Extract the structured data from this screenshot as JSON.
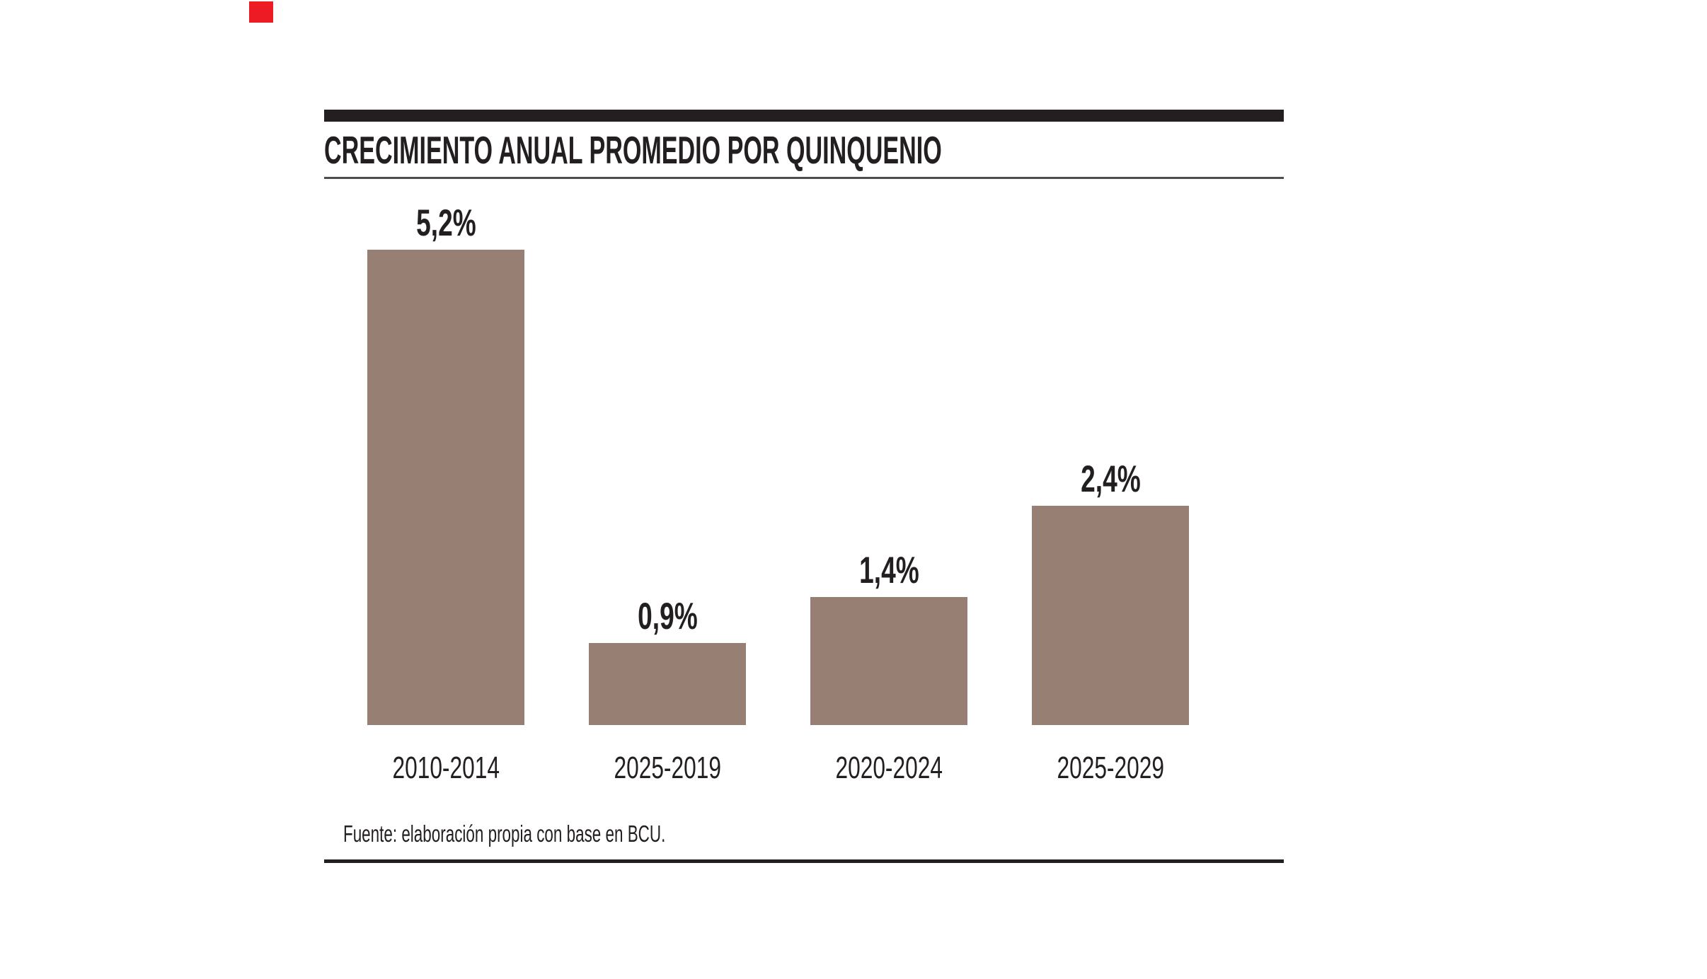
{
  "header": {
    "title": "CRECIMIENTO ANUAL PROMEDIO POR QUINQUENIO"
  },
  "footer": {
    "source_note": "Fuente: elaboración propia con base en BCU."
  },
  "colors": {
    "ink": "#231f20",
    "rule_gray": "#4d4d4f",
    "bar": "#978073",
    "accent_red": "#ed1c24",
    "background": "#ffffff"
  },
  "chart_data": {
    "type": "bar",
    "title": "CRECIMIENTO ANUAL PROMEDIO POR QUINQUENIO",
    "categories": [
      "2010-2014",
      "2025-2019",
      "2020-2024",
      "2025-2029"
    ],
    "values": [
      5.2,
      0.9,
      1.4,
      2.4
    ],
    "value_labels": [
      "5,2%",
      "0,9%",
      "1,4%",
      "2,4%"
    ],
    "xlabel": "",
    "ylabel": "",
    "ylim": [
      0,
      5.6
    ],
    "grid": false,
    "legend": false,
    "bar_color": "#978073",
    "annotations": "values shown above each bar, comma decimal separator",
    "source": "Fuente: elaboración propia con base en BCU."
  }
}
